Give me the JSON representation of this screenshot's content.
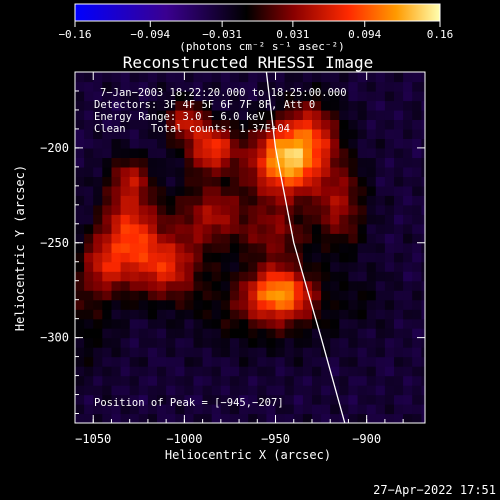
{
  "chart_data": {
    "type": "heatmap",
    "title": "Reconstructed RHESSI Image",
    "xlabel": "Heliocentric X (arcsec)",
    "ylabel": "Heliocentric Y (arcsec)",
    "xlim": [
      -1060,
      -868
    ],
    "ylim": [
      -345,
      -160
    ],
    "x_ticks": [
      -1050,
      -1000,
      -950,
      -900
    ],
    "x_tick_labels": [
      "−1050",
      "−1000",
      "−950",
      "−900"
    ],
    "y_ticks": [
      -200,
      -250,
      -300
    ],
    "y_tick_labels": [
      "−200",
      "−250",
      "−300"
    ],
    "colorbar": {
      "ticks": [
        -0.16,
        -0.094,
        -0.031,
        0.031,
        0.094,
        0.16
      ],
      "tick_labels": [
        "−0.16",
        "−0.094",
        "−0.031",
        "0.031",
        "0.094",
        "0.16"
      ],
      "unit_label": "(photons cm⁻² s⁻¹ asec⁻²)",
      "range": [
        -0.16,
        0.16
      ],
      "colors": [
        "#0000ff",
        "#3a0090",
        "#000000",
        "#8a0000",
        "#ff2a00",
        "#ff9a00",
        "#ffffb0"
      ]
    },
    "annotations": {
      "time_range": "7−Jan−2003 18:22:20.000 to 18:25:00.000",
      "detectors": "Detectors: 3F 4F 5F 6F 7F 8F, Att 0",
      "energy": "Energy Range: 3.0 − 6.0 keV",
      "clean": "Clean    Total counts: 1.37E+04",
      "peak": "Position of Peak = [−945,−207]"
    },
    "sources": [
      {
        "x": -945,
        "y": -207,
        "sx": 13,
        "sy": 13,
        "value": 0.16
      },
      {
        "x": -985,
        "y": -200,
        "sx": 10,
        "sy": 9,
        "value": 0.11
      },
      {
        "x": -1000,
        "y": -185,
        "sx": 8,
        "sy": 7,
        "value": 0.08
      },
      {
        "x": -930,
        "y": -192,
        "sx": 11,
        "sy": 13,
        "value": 0.08
      },
      {
        "x": -1030,
        "y": -243,
        "sx": 11,
        "sy": 16,
        "value": 0.105
      },
      {
        "x": -1010,
        "y": -262,
        "sx": 13,
        "sy": 12,
        "value": 0.095
      },
      {
        "x": -1045,
        "y": -262,
        "sx": 9,
        "sy": 11,
        "value": 0.07
      },
      {
        "x": -985,
        "y": -235,
        "sx": 14,
        "sy": 12,
        "value": 0.075
      },
      {
        "x": -1030,
        "y": -215,
        "sx": 8,
        "sy": 8,
        "value": 0.06
      },
      {
        "x": -948,
        "y": -276,
        "sx": 12,
        "sy": 9,
        "value": 0.13
      },
      {
        "x": -950,
        "y": -245,
        "sx": 12,
        "sy": 11,
        "value": 0.06
      },
      {
        "x": -915,
        "y": -230,
        "sx": 10,
        "sy": 16,
        "value": 0.07
      },
      {
        "x": -955,
        "y": -285,
        "sx": 28,
        "sy": 14,
        "value": 0.04
      },
      {
        "x": -1055,
        "y": -290,
        "sx": 12,
        "sy": 18,
        "value": 0.028
      },
      {
        "x": -900,
        "y": -278,
        "sx": 10,
        "sy": 10,
        "value": 0.012
      }
    ],
    "limb_curve": {
      "x": [
        -955,
        -950,
        -940,
        -925,
        -912
      ],
      "y": [
        -160,
        -200,
        -250,
        -300,
        -345
      ]
    }
  },
  "timestamp": "27−Apr−2022 17:51"
}
